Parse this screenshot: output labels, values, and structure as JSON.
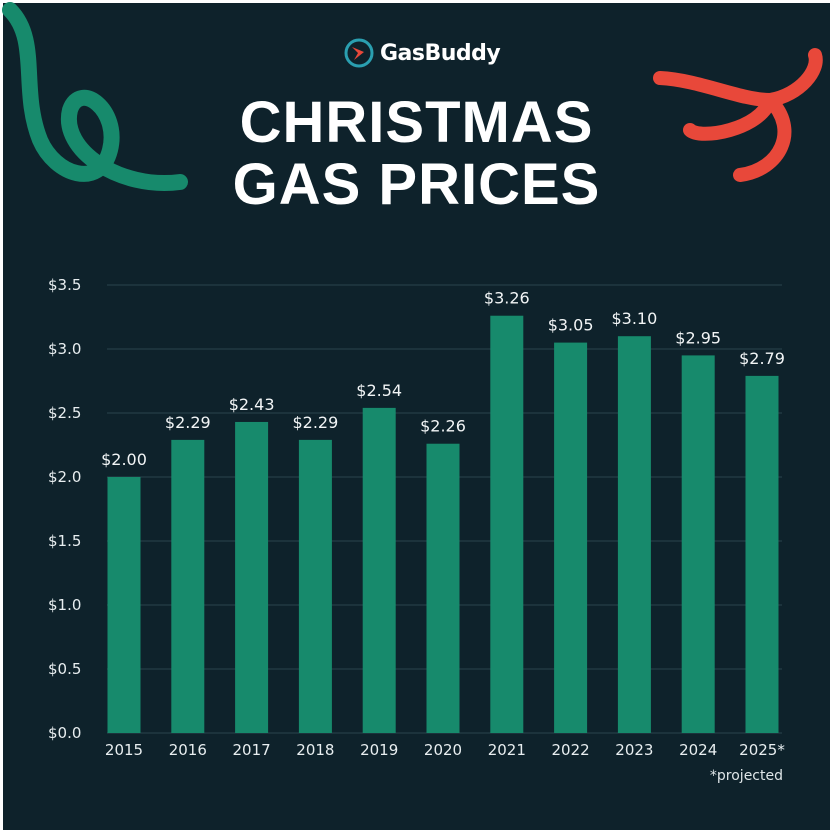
{
  "brand": {
    "name": "GasBuddy",
    "logo_colors": {
      "ring": "#2a9fb0",
      "arrow": "#e8483a"
    }
  },
  "title_lines": [
    "CHRISTMAS",
    "GAS PRICES"
  ],
  "footnote": "*projected",
  "colors": {
    "background": "#0e222b",
    "bar": "#178a6c",
    "grid": "#213943",
    "text": "#ffffff",
    "ribbon_green": "#178a6c",
    "ribbon_red": "#e8483a"
  },
  "chart_data": {
    "type": "bar",
    "categories": [
      "2015",
      "2016",
      "2017",
      "2018",
      "2019",
      "2020",
      "2021",
      "2022",
      "2023",
      "2024",
      "2025*"
    ],
    "values": [
      2.0,
      2.29,
      2.43,
      2.29,
      2.54,
      2.26,
      3.26,
      3.05,
      3.1,
      2.95,
      2.79
    ],
    "data_labels": [
      "$2.00",
      "$2.29",
      "$2.43",
      "$2.29",
      "$2.54",
      "$2.26",
      "$3.26",
      "$3.05",
      "$3.10",
      "$2.95",
      "$2.79"
    ],
    "y_ticks": [
      0,
      0.5,
      1.0,
      1.5,
      2.0,
      2.5,
      3.0,
      3.5
    ],
    "y_tick_labels": [
      "$0.0",
      "$0.5",
      "$1.0",
      "$1.5",
      "$2.0",
      "$2.5",
      "$3.0",
      "$3.5"
    ],
    "ylim": [
      0,
      3.5
    ],
    "grid": true,
    "legend": "none",
    "title": "CHRISTMAS GAS PRICES",
    "xlabel": "",
    "ylabel": ""
  }
}
